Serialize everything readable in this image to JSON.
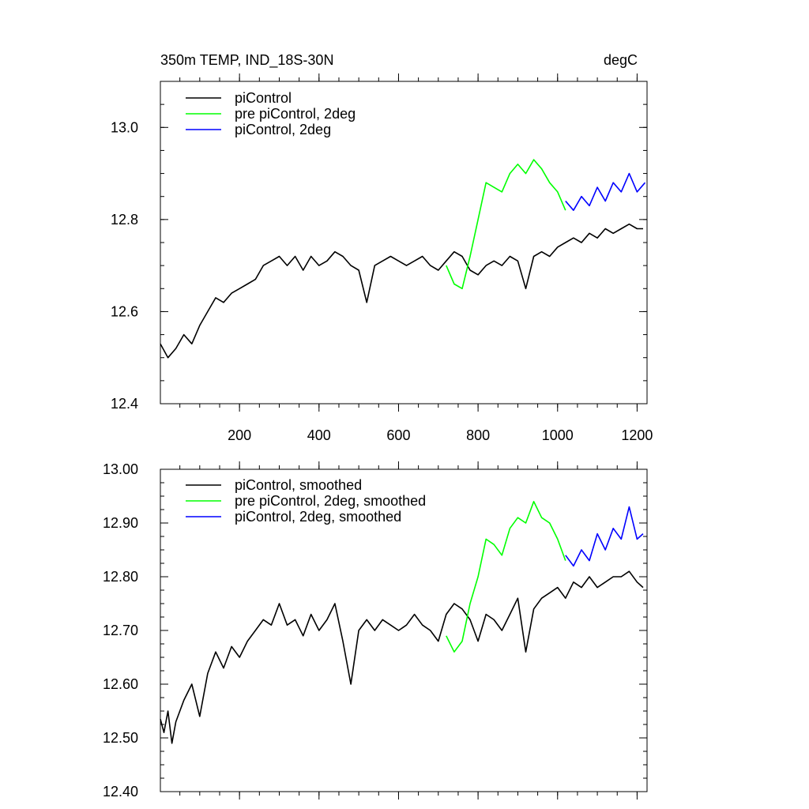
{
  "chart_data": [
    {
      "type": "line",
      "title": "350m TEMP, IND_18S-30N",
      "units": "degC",
      "xlim": [
        1,
        1225
      ],
      "ylim": [
        12.4,
        13.1
      ],
      "xticks": [
        200,
        400,
        600,
        800,
        1000,
        1200
      ],
      "xtick_labels": [
        "200",
        "400",
        "600",
        "800",
        "1000",
        "1200"
      ],
      "yticks": [
        12.4,
        12.6,
        12.8,
        13.0
      ],
      "ytick_labels": [
        "12.4",
        "12.6",
        "12.8",
        "13.0"
      ],
      "legend_position": "top-left",
      "series": [
        {
          "name": "piControl",
          "color": "#000000",
          "x": [
            1,
            20,
            40,
            60,
            80,
            100,
            120,
            140,
            160,
            180,
            200,
            220,
            240,
            260,
            280,
            300,
            320,
            340,
            360,
            380,
            400,
            420,
            440,
            460,
            480,
            500,
            520,
            540,
            560,
            580,
            600,
            620,
            640,
            660,
            680,
            700,
            720,
            740,
            760,
            780,
            800,
            820,
            840,
            860,
            880,
            900,
            920,
            940,
            960,
            980,
            1000,
            1020,
            1040,
            1060,
            1080,
            1100,
            1120,
            1140,
            1160,
            1180,
            1200,
            1215
          ],
          "values": [
            12.53,
            12.5,
            12.52,
            12.55,
            12.53,
            12.57,
            12.6,
            12.63,
            12.62,
            12.64,
            12.65,
            12.66,
            12.67,
            12.7,
            12.71,
            12.72,
            12.7,
            12.72,
            12.69,
            12.72,
            12.7,
            12.71,
            12.73,
            12.72,
            12.7,
            12.69,
            12.62,
            12.7,
            12.71,
            12.72,
            12.71,
            12.7,
            12.71,
            12.72,
            12.7,
            12.69,
            12.71,
            12.73,
            12.72,
            12.69,
            12.68,
            12.7,
            12.71,
            12.7,
            12.72,
            12.71,
            12.65,
            12.72,
            12.73,
            12.72,
            12.74,
            12.75,
            12.76,
            12.75,
            12.77,
            12.76,
            12.78,
            12.77,
            12.78,
            12.79,
            12.78,
            12.78
          ]
        },
        {
          "name": "pre piControl, 2deg",
          "color": "#00ff00",
          "x": [
            720,
            740,
            760,
            780,
            800,
            820,
            840,
            860,
            880,
            900,
            920,
            940,
            960,
            980,
            1000,
            1020
          ],
          "values": [
            12.7,
            12.66,
            12.65,
            12.72,
            12.8,
            12.88,
            12.87,
            12.86,
            12.9,
            12.92,
            12.9,
            12.93,
            12.91,
            12.88,
            12.86,
            12.82
          ]
        },
        {
          "name": "piControl, 2deg",
          "color": "#0000ff",
          "x": [
            1020,
            1040,
            1060,
            1080,
            1100,
            1120,
            1140,
            1160,
            1180,
            1200,
            1220
          ],
          "values": [
            12.84,
            12.82,
            12.85,
            12.83,
            12.87,
            12.84,
            12.88,
            12.86,
            12.9,
            12.86,
            12.88
          ]
        }
      ]
    },
    {
      "type": "line",
      "xlim": [
        1,
        1225
      ],
      "ylim": [
        12.4,
        13.0
      ],
      "xticks": [
        200,
        400,
        600,
        800,
        1000,
        1200
      ],
      "yticks": [
        12.4,
        12.5,
        12.6,
        12.7,
        12.8,
        12.9,
        13.0
      ],
      "ytick_labels": [
        "12.40",
        "12.50",
        "12.60",
        "12.70",
        "12.80",
        "12.90",
        "13.00"
      ],
      "legend_position": "top-left",
      "series": [
        {
          "name": "piControl, smoothed",
          "color": "#000000",
          "x": [
            1,
            10,
            20,
            30,
            40,
            60,
            80,
            100,
            120,
            140,
            160,
            180,
            200,
            220,
            240,
            260,
            280,
            300,
            320,
            340,
            360,
            380,
            400,
            420,
            440,
            460,
            480,
            500,
            520,
            540,
            560,
            580,
            600,
            620,
            640,
            660,
            680,
            700,
            720,
            740,
            760,
            780,
            800,
            820,
            840,
            860,
            880,
            900,
            920,
            940,
            960,
            980,
            1000,
            1020,
            1040,
            1060,
            1080,
            1100,
            1120,
            1140,
            1160,
            1180,
            1200,
            1215
          ],
          "values": [
            12.535,
            12.51,
            12.55,
            12.49,
            12.53,
            12.57,
            12.6,
            12.54,
            12.62,
            12.66,
            12.63,
            12.67,
            12.65,
            12.68,
            12.7,
            12.72,
            12.71,
            12.75,
            12.71,
            12.72,
            12.69,
            12.73,
            12.7,
            12.72,
            12.75,
            12.68,
            12.6,
            12.7,
            12.72,
            12.7,
            12.72,
            12.71,
            12.7,
            12.71,
            12.73,
            12.71,
            12.7,
            12.68,
            12.73,
            12.75,
            12.74,
            12.72,
            12.68,
            12.73,
            12.72,
            12.7,
            12.73,
            12.76,
            12.66,
            12.74,
            12.76,
            12.77,
            12.78,
            12.76,
            12.79,
            12.78,
            12.8,
            12.78,
            12.79,
            12.8,
            12.8,
            12.81,
            12.79,
            12.78
          ]
        },
        {
          "name": "pre piControl, 2deg, smoothed",
          "color": "#00ff00",
          "x": [
            720,
            740,
            760,
            780,
            800,
            820,
            840,
            860,
            880,
            900,
            920,
            940,
            960,
            980,
            1000,
            1020
          ],
          "values": [
            12.69,
            12.66,
            12.68,
            12.75,
            12.8,
            12.87,
            12.86,
            12.84,
            12.89,
            12.91,
            12.9,
            12.94,
            12.91,
            12.9,
            12.87,
            12.83
          ]
        },
        {
          "name": "piControl, 2deg, smoothed",
          "color": "#0000ff",
          "x": [
            1020,
            1040,
            1060,
            1080,
            1100,
            1120,
            1140,
            1160,
            1180,
            1200,
            1215
          ],
          "values": [
            12.84,
            12.82,
            12.85,
            12.83,
            12.88,
            12.85,
            12.89,
            12.87,
            12.93,
            12.87,
            12.88
          ]
        }
      ]
    }
  ]
}
